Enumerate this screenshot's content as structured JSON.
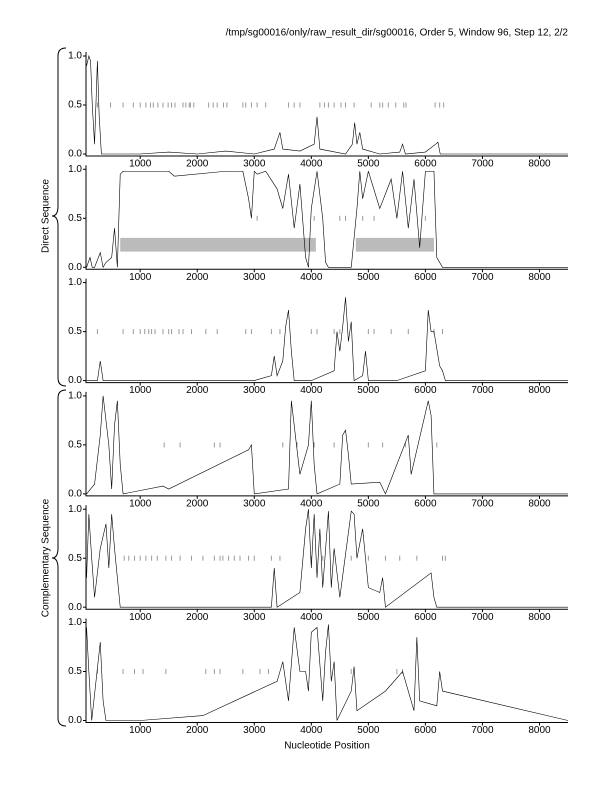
{
  "title": "/tmp/sg00016/only/raw_result_dir/sg00016, Order 5, Window 96, Step 12, 2/2",
  "x_label": "Nucleotide Position",
  "group_labels": [
    "Direct Sequence",
    "Complementary Sequence"
  ],
  "chart_data": [
    {
      "type": "line",
      "color": "#000000",
      "marker_color": "#999999",
      "region_color": "#bbbbbb",
      "xlim": [
        50,
        8500
      ],
      "xticks": [
        1000,
        2000,
        3000,
        4000,
        5000,
        6000,
        7000,
        8000
      ],
      "ylim": [
        0,
        1
      ],
      "yticks": [
        {
          "value": 0,
          "label": "0.0"
        },
        {
          "value": 0.5,
          "label": "0.5"
        },
        {
          "value": 1,
          "label": "1.0"
        }
      ],
      "x": [
        60,
        100,
        130,
        160,
        200,
        250,
        280,
        320,
        600,
        1000,
        1500,
        2000,
        2500,
        3000,
        3350,
        3450,
        3500,
        3800,
        4050,
        4100,
        4150,
        4600,
        4720,
        4760,
        4800,
        4850,
        4900,
        5200,
        5550,
        5600,
        5650,
        6000,
        6180,
        6220,
        6260,
        6500,
        7000,
        8000,
        8500
      ],
      "values": [
        0.9,
        1.0,
        0.95,
        0.5,
        0.1,
        0.95,
        0.4,
        0,
        0,
        0,
        0.02,
        0,
        0.03,
        0,
        0.05,
        0.22,
        0.05,
        0.03,
        0.1,
        0.38,
        0.05,
        0,
        0.1,
        0.32,
        0.1,
        0.22,
        0.05,
        0,
        0.02,
        0.1,
        0,
        0.02,
        0.1,
        0.12,
        0,
        0,
        0,
        0,
        0
      ],
      "markers": [
        250,
        480,
        700,
        880,
        1000,
        1100,
        1180,
        1230,
        1310,
        1400,
        1490,
        1550,
        1610,
        1750,
        1800,
        1860,
        1880,
        1940,
        2200,
        2280,
        2350,
        2460,
        2520,
        2800,
        2850,
        2950,
        3050,
        3200,
        3600,
        3700,
        3800,
        4150,
        4230,
        4300,
        4400,
        4520,
        4600,
        4750,
        5050,
        5200,
        5250,
        5350,
        5480,
        5620,
        5660,
        6170,
        6250,
        6320
      ],
      "regions": []
    },
    {
      "type": "line",
      "color": "#000000",
      "marker_color": "#999999",
      "region_color": "#bbbbbb",
      "xlim": [
        50,
        8500
      ],
      "xticks": [
        1000,
        2000,
        3000,
        4000,
        5000,
        6000,
        7000,
        8000
      ],
      "ylim": [
        0,
        1
      ],
      "yticks": [
        {
          "value": 0,
          "label": "0.0"
        },
        {
          "value": 0.5,
          "label": "0.5"
        },
        {
          "value": 1,
          "label": "1.0"
        }
      ],
      "x": [
        60,
        120,
        160,
        200,
        300,
        350,
        400,
        500,
        550,
        600,
        650,
        700,
        1500,
        1600,
        2500,
        2800,
        2900,
        2950,
        3000,
        3050,
        3200,
        3400,
        3500,
        3600,
        3700,
        3800,
        3900,
        3950,
        4000,
        4100,
        4200,
        4250,
        4300,
        4700,
        4800,
        4850,
        4900,
        5000,
        5200,
        5400,
        5500,
        5600,
        5700,
        5800,
        5900,
        6000,
        6100,
        6150,
        6200,
        6300,
        8500
      ],
      "values": [
        0.0,
        0.1,
        0,
        0,
        0.15,
        0,
        0.05,
        0.1,
        0.4,
        0,
        0.95,
        0.98,
        0.98,
        0.93,
        0.98,
        0.98,
        0.7,
        0.5,
        0.98,
        0.95,
        0.98,
        0.8,
        0.6,
        0.95,
        0.4,
        0.85,
        0.1,
        0.0,
        0.6,
        0.98,
        0.5,
        0.05,
        0,
        0,
        0.6,
        0.98,
        0.7,
        0.98,
        0.6,
        0.9,
        0.5,
        0.98,
        0.4,
        0.9,
        0.2,
        0.98,
        0.98,
        0.98,
        0.1,
        0,
        0
      ],
      "markers": [
        3050,
        4050,
        4500,
        4600,
        4900,
        5100,
        6000
      ],
      "regions": [
        {
          "start": 650,
          "end": 4080
        },
        {
          "start": 4780,
          "end": 6150
        }
      ]
    },
    {
      "type": "line",
      "color": "#000000",
      "marker_color": "#999999",
      "region_color": "#bbbbbb",
      "xlim": [
        50,
        8500
      ],
      "xticks": [
        1000,
        2000,
        3000,
        4000,
        5000,
        6000,
        7000,
        8000
      ],
      "ylim": [
        0,
        1
      ],
      "yticks": [
        {
          "value": 0,
          "label": "0.0"
        },
        {
          "value": 0.5,
          "label": "0.5"
        },
        {
          "value": 1,
          "label": "1.0"
        }
      ],
      "x": [
        60,
        250,
        300,
        350,
        1000,
        2000,
        3000,
        3300,
        3350,
        3400,
        3500,
        3550,
        3600,
        3650,
        3700,
        4000,
        4400,
        4450,
        4500,
        4550,
        4600,
        4650,
        4700,
        4750,
        4900,
        4950,
        5000,
        5500,
        6000,
        6050,
        6100,
        6150,
        6250,
        6300,
        6350,
        8500
      ],
      "values": [
        0,
        0,
        0.2,
        0,
        0,
        0,
        0,
        0.05,
        0.25,
        0.05,
        0.2,
        0.55,
        0.72,
        0.3,
        0,
        0,
        0.1,
        0.5,
        0.3,
        0.55,
        0.85,
        0.4,
        0.6,
        0,
        0.05,
        0.3,
        0,
        0,
        0.1,
        0.72,
        0.5,
        0.5,
        0.15,
        0.1,
        0,
        0
      ],
      "markers": [
        250,
        700,
        880,
        1000,
        1080,
        1150,
        1200,
        1260,
        1400,
        1500,
        1550,
        1680,
        1750,
        1900,
        2150,
        2350,
        2850,
        2950,
        3300,
        3450,
        4000,
        4100,
        4400,
        4500,
        5000,
        5100,
        5400,
        5700,
        6150,
        6300
      ],
      "regions": []
    },
    {
      "type": "line",
      "color": "#000000",
      "marker_color": "#999999",
      "region_color": "#bbbbbb",
      "xlim": [
        50,
        8500
      ],
      "xticks": [
        1000,
        2000,
        3000,
        4000,
        5000,
        6000,
        7000,
        8000
      ],
      "ylim": [
        0,
        1
      ],
      "yticks": [
        {
          "value": 0,
          "label": "0.0"
        },
        {
          "value": 0.5,
          "label": "0.5"
        },
        {
          "value": 1,
          "label": "1.0"
        }
      ],
      "x": [
        60,
        200,
        300,
        350,
        450,
        500,
        550,
        600,
        650,
        700,
        1400,
        1500,
        2900,
        2950,
        3000,
        3600,
        3650,
        3700,
        3800,
        3950,
        4000,
        4050,
        4100,
        4500,
        4550,
        4600,
        4650,
        4700,
        5200,
        5300,
        5700,
        5750,
        6050,
        6100,
        6150,
        8500
      ],
      "values": [
        0,
        0.1,
        0.6,
        1.0,
        0.5,
        0.05,
        0.7,
        0.95,
        0.3,
        0,
        0.08,
        0.05,
        0.45,
        0.5,
        0,
        0.05,
        0.95,
        0.7,
        0.2,
        0.5,
        0.95,
        0.3,
        0,
        0.1,
        0.6,
        0.65,
        0.4,
        0.1,
        0.12,
        0,
        0.6,
        0.2,
        0.95,
        0.8,
        0,
        0
      ],
      "markers": [
        1420,
        1700,
        2300,
        2400,
        3500,
        3750,
        4050,
        4400,
        5000,
        5250,
        5650,
        6200
      ],
      "regions": []
    },
    {
      "type": "line",
      "color": "#000000",
      "marker_color": "#999999",
      "region_color": "#bbbbbb",
      "xlim": [
        50,
        8500
      ],
      "xticks": [
        1000,
        2000,
        3000,
        4000,
        5000,
        6000,
        7000,
        8000
      ],
      "ylim": [
        0,
        1
      ],
      "yticks": [
        {
          "value": 0,
          "label": "0.0"
        },
        {
          "value": 0.5,
          "label": "0.5"
        },
        {
          "value": 1,
          "label": "1.0"
        }
      ],
      "x": [
        60,
        100,
        150,
        200,
        300,
        400,
        450,
        500,
        550,
        600,
        650,
        3300,
        3350,
        3400,
        3800,
        3900,
        3950,
        4000,
        4050,
        4100,
        4150,
        4200,
        4300,
        4350,
        4400,
        4500,
        4700,
        4750,
        4800,
        4900,
        5000,
        5200,
        5250,
        5300,
        6100,
        6150,
        6200,
        8500
      ],
      "values": [
        0.3,
        0.95,
        0.5,
        0.1,
        0.6,
        0.85,
        0.4,
        0.95,
        0.6,
        0.3,
        0,
        0,
        0.4,
        0,
        0.15,
        0.8,
        1.0,
        0.4,
        0.95,
        0.3,
        0.8,
        0.2,
        0.98,
        0.2,
        0.6,
        0.1,
        0.98,
        0.95,
        0.5,
        0.8,
        0.2,
        0.15,
        0.3,
        0,
        0.35,
        0.1,
        0,
        0
      ],
      "markers": [
        720,
        800,
        900,
        1000,
        1100,
        1200,
        1300,
        1450,
        1550,
        1700,
        1900,
        2100,
        2300,
        2400,
        2450,
        2550,
        2650,
        2750,
        2900,
        3000,
        3300,
        3450,
        4000,
        4200,
        4700,
        5000,
        5300,
        5550,
        5850,
        6300,
        6350
      ],
      "regions": []
    },
    {
      "type": "line",
      "color": "#000000",
      "marker_color": "#999999",
      "region_color": "#bbbbbb",
      "xlim": [
        50,
        8500
      ],
      "xticks": [
        1000,
        2000,
        3000,
        4000,
        5000,
        6000,
        7000,
        8000
      ],
      "ylim": [
        0,
        1
      ],
      "yticks": [
        {
          "value": 0,
          "label": "0.0"
        },
        {
          "value": 0.5,
          "label": "0.5"
        },
        {
          "value": 1,
          "label": "1.0"
        }
      ],
      "x": [
        60,
        100,
        150,
        300,
        350,
        400,
        1000,
        2100,
        3400,
        3500,
        3600,
        3700,
        3800,
        3900,
        3950,
        4000,
        4100,
        4200,
        4250,
        4300,
        4350,
        4400,
        4450,
        4700,
        4750,
        4800,
        5300,
        5600,
        5800,
        5850,
        5900,
        6200,
        6250,
        6300,
        8500
      ],
      "values": [
        0.95,
        0.5,
        0,
        0.8,
        0.2,
        0,
        0,
        0.05,
        0.4,
        0.6,
        0.2,
        0.95,
        0.5,
        0.5,
        0.3,
        0.9,
        0.95,
        0.2,
        0.7,
        0.98,
        0.4,
        0.6,
        0,
        0.3,
        0.55,
        0.1,
        0.3,
        0.5,
        0.1,
        0.85,
        0.2,
        0.15,
        0.5,
        0.3,
        0
      ],
      "markers": [
        250,
        700,
        900,
        1050,
        1450,
        2150,
        2300,
        2400,
        2800,
        3100,
        3250,
        4700,
        5500,
        5600
      ],
      "regions": []
    }
  ]
}
